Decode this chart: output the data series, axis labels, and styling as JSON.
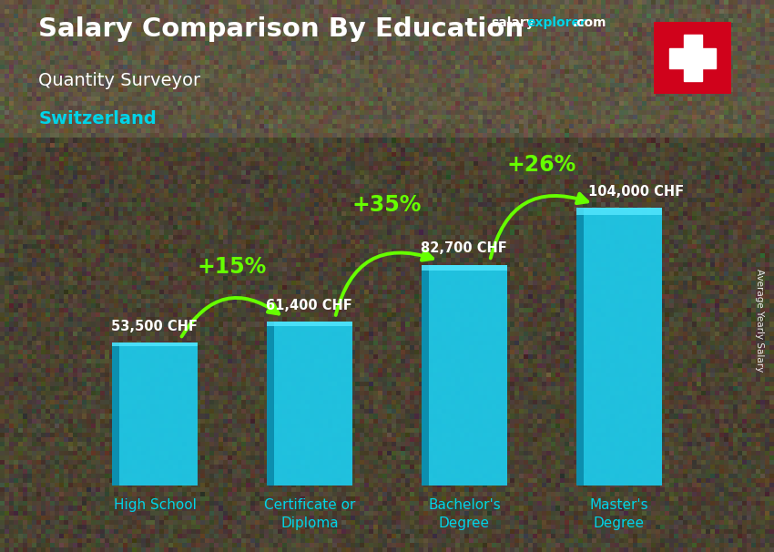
{
  "title_main": "Salary Comparison By Education",
  "subtitle1": "Quantity Surveyor",
  "subtitle2": "Switzerland",
  "ylabel_rotated": "Average Yearly Salary",
  "categories": [
    "High School",
    "Certificate or\nDiploma",
    "Bachelor's\nDegree",
    "Master's\nDegree"
  ],
  "values": [
    53500,
    61400,
    82700,
    104000
  ],
  "value_labels": [
    "53,500 CHF",
    "61,400 CHF",
    "82,700 CHF",
    "104,000 CHF"
  ],
  "pct_labels": [
    "+15%",
    "+35%",
    "+26%"
  ],
  "bar_color": "#1ec8e8",
  "bar_color_dark": "#0a8aaa",
  "bar_color_light": "#55e8ff",
  "title_color": "#ffffff",
  "subtitle1_color": "#ffffff",
  "subtitle2_color": "#00d4e8",
  "value_label_color": "#ffffff",
  "pct_color": "#66ff00",
  "arrow_color": "#66ff00",
  "xtick_color": "#00d4e8",
  "ylim": [
    0,
    128000
  ],
  "bar_width": 0.55,
  "value_label_offsets": [
    3500,
    3500,
    3500,
    3500
  ],
  "arc_configs": [
    [
      0,
      1,
      53500,
      61400,
      "+15%",
      0.5,
      82000,
      -0.55
    ],
    [
      1,
      2,
      61400,
      82700,
      "+35%",
      1.5,
      105000,
      -0.55
    ],
    [
      2,
      3,
      82700,
      104000,
      "+26%",
      2.5,
      120000,
      -0.55
    ]
  ]
}
